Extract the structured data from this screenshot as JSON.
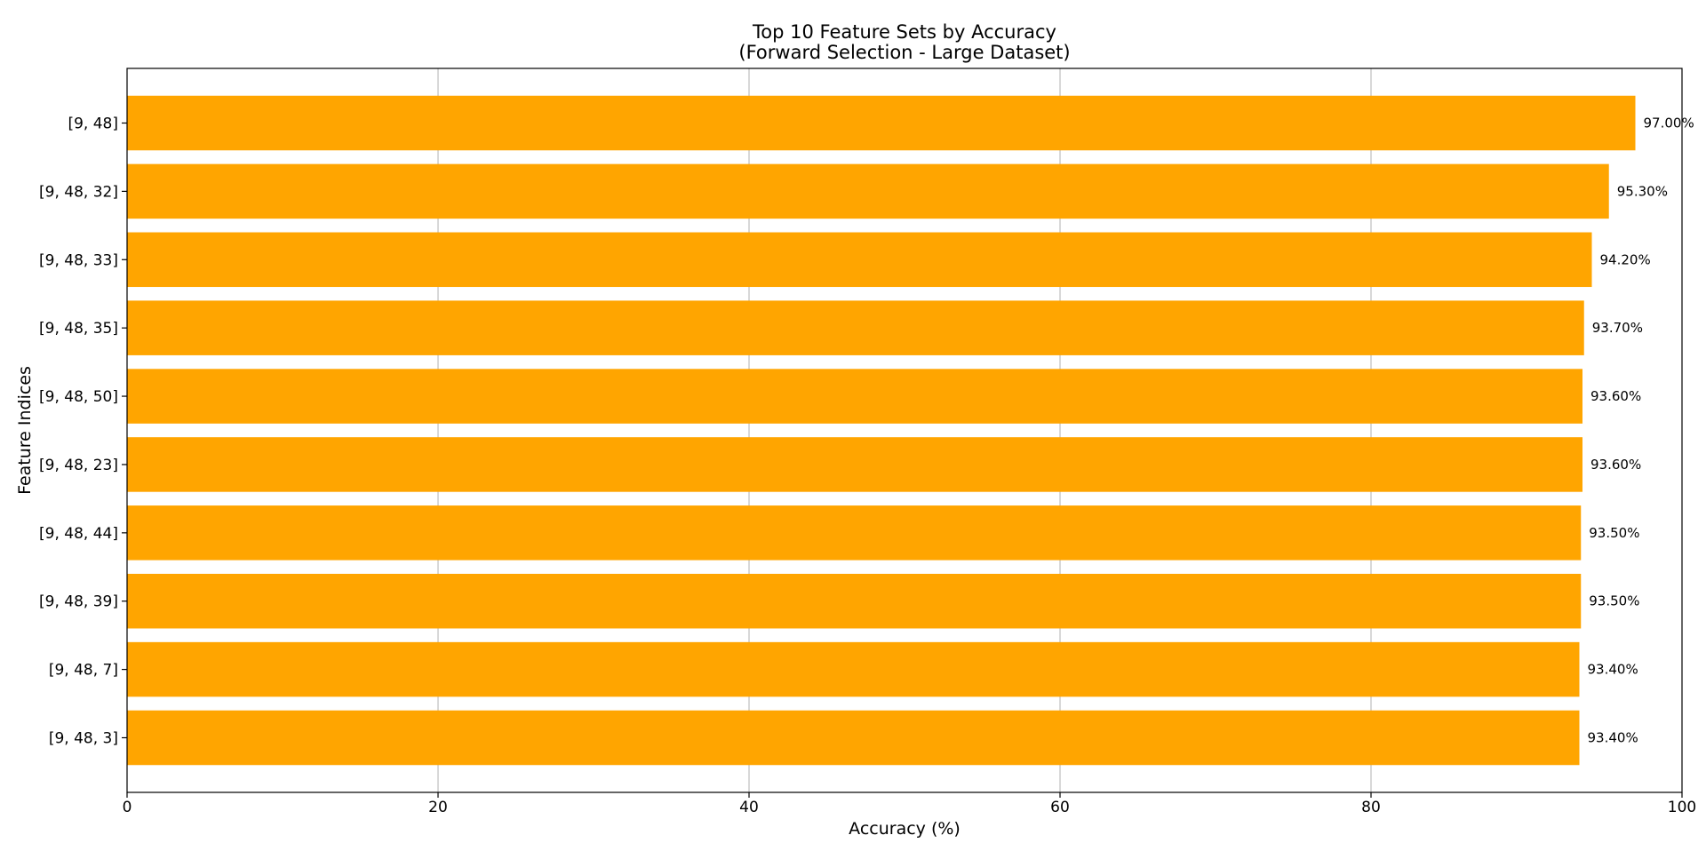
{
  "chart_data": {
    "type": "bar",
    "orientation": "horizontal",
    "title": "Top 10 Feature Sets by Accuracy",
    "subtitle": "(Forward Selection - Large Dataset)",
    "xlabel": "Accuracy (%)",
    "ylabel": "Feature Indices",
    "xlim": [
      0,
      100
    ],
    "xticks": [
      0,
      20,
      40,
      60,
      80,
      100
    ],
    "grid": "x-axis",
    "bar_color": "#FFA500",
    "categories": [
      "[9, 48]",
      "[9, 48, 32]",
      "[9, 48, 33]",
      "[9, 48, 35]",
      "[9, 48, 50]",
      "[9, 48, 23]",
      "[9, 48, 44]",
      "[9, 48, 39]",
      "[9, 48, 7]",
      "[9, 48, 3]"
    ],
    "values": [
      97.0,
      95.3,
      94.2,
      93.7,
      93.6,
      93.6,
      93.5,
      93.5,
      93.4,
      93.4
    ],
    "data_labels": [
      "97.00%",
      "95.30%",
      "94.20%",
      "93.70%",
      "93.60%",
      "93.60%",
      "93.50%",
      "93.50%",
      "93.40%",
      "93.40%"
    ]
  }
}
